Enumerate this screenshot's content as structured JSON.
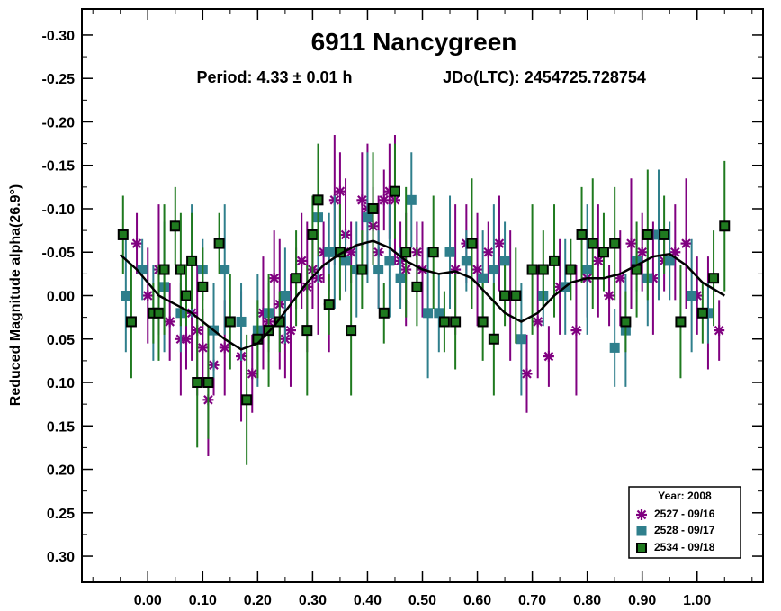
{
  "chart_data": {
    "type": "scatter",
    "title": "6911 Nancygreen",
    "subtitle_period": "Period: 4.33 ± 0.01 h",
    "subtitle_epoch": "JDo(LTC): 2454725.728754",
    "ylabel": "Reduced Magnitude alpha(26.9°)",
    "xlabel": "",
    "xlim": [
      -0.12,
      1.12
    ],
    "ylim": [
      0.33,
      -0.33
    ],
    "y_inverted": true,
    "x_ticks": [
      "0.00",
      "0.10",
      "0.20",
      "0.30",
      "0.40",
      "0.50",
      "0.60",
      "0.70",
      "0.80",
      "0.90",
      "1.00"
    ],
    "y_ticks": [
      "-0.30",
      "-0.25",
      "-0.20",
      "-0.15",
      "-0.10",
      "-0.05",
      "0.00",
      "0.05",
      "0.10",
      "0.15",
      "0.20",
      "0.25",
      "0.30"
    ],
    "grid": false,
    "legend_placement": "bottom-right",
    "legend_title": "Year: 2008",
    "series": [
      {
        "name": "2527 - 09/16",
        "marker": "asterisk",
        "color": "#800080",
        "x": [
          -0.02,
          0.0,
          0.02,
          0.04,
          0.06,
          0.07,
          0.08,
          0.09,
          0.1,
          0.11,
          0.12,
          0.14,
          0.17,
          0.19,
          0.21,
          0.22,
          0.23,
          0.24,
          0.25,
          0.26,
          0.27,
          0.28,
          0.29,
          0.3,
          0.31,
          0.32,
          0.33,
          0.34,
          0.35,
          0.36,
          0.37,
          0.39,
          0.4,
          0.41,
          0.42,
          0.43,
          0.44,
          0.45,
          0.46,
          0.47,
          0.49,
          0.5,
          0.56,
          0.58,
          0.6,
          0.62,
          0.64,
          0.66,
          0.69,
          0.71,
          0.73,
          0.75,
          0.78,
          0.8,
          0.82,
          0.84,
          0.86,
          0.88,
          0.9,
          0.92,
          0.94,
          0.96,
          0.98,
          1.0,
          1.02,
          1.04
        ],
        "y": [
          -0.06,
          0.0,
          -0.03,
          0.03,
          0.05,
          0.05,
          0.02,
          0.04,
          0.06,
          0.12,
          0.08,
          0.06,
          0.07,
          0.09,
          0.02,
          0.03,
          -0.02,
          0.01,
          0.05,
          0.04,
          -0.02,
          -0.04,
          -0.01,
          -0.03,
          -0.02,
          -0.05,
          0.01,
          -0.11,
          -0.12,
          -0.07,
          -0.05,
          -0.11,
          -0.1,
          -0.08,
          -0.05,
          -0.11,
          -0.12,
          -0.11,
          -0.04,
          -0.03,
          -0.05,
          -0.03,
          -0.03,
          -0.06,
          -0.03,
          -0.05,
          -0.06,
          0.0,
          0.09,
          0.03,
          0.07,
          -0.01,
          0.04,
          -0.02,
          -0.04,
          0.0,
          -0.02,
          -0.06,
          -0.05,
          -0.02,
          -0.04,
          -0.05,
          -0.06,
          0.0,
          0.02,
          0.04
        ]
      },
      {
        "name": "2528 - 09/17",
        "marker": "square",
        "color": "#2F7F8C",
        "x": [
          -0.04,
          -0.01,
          0.01,
          0.03,
          0.06,
          0.08,
          0.1,
          0.12,
          0.14,
          0.17,
          0.2,
          0.22,
          0.25,
          0.31,
          0.33,
          0.34,
          0.36,
          0.38,
          0.4,
          0.42,
          0.44,
          0.46,
          0.48,
          0.51,
          0.53,
          0.55,
          0.58,
          0.61,
          0.63,
          0.65,
          0.68,
          0.72,
          0.76,
          0.8,
          0.85,
          0.87,
          0.89,
          0.91,
          0.93,
          0.95,
          0.99,
          1.02
        ],
        "y": [
          0.0,
          -0.03,
          0.02,
          -0.01,
          0.02,
          -0.04,
          -0.03,
          0.04,
          -0.03,
          0.03,
          0.04,
          0.02,
          0.0,
          -0.09,
          -0.05,
          -0.05,
          -0.04,
          -0.03,
          -0.09,
          -0.03,
          -0.04,
          -0.02,
          -0.11,
          0.02,
          0.02,
          -0.05,
          -0.04,
          -0.02,
          -0.03,
          -0.04,
          0.05,
          0.0,
          -0.01,
          -0.03,
          0.06,
          0.04,
          -0.04,
          -0.02,
          -0.07,
          -0.04,
          0.0,
          0.02
        ]
      },
      {
        "name": "2534 - 09/18",
        "marker": "filled-square",
        "color": "#1F7A1F",
        "x": [
          -0.045,
          -0.03,
          0.01,
          0.02,
          0.03,
          0.05,
          0.06,
          0.07,
          0.08,
          0.09,
          0.1,
          0.11,
          0.13,
          0.15,
          0.18,
          0.2,
          0.22,
          0.24,
          0.27,
          0.29,
          0.3,
          0.31,
          0.33,
          0.35,
          0.37,
          0.39,
          0.41,
          0.43,
          0.45,
          0.47,
          0.49,
          0.52,
          0.54,
          0.56,
          0.59,
          0.61,
          0.63,
          0.65,
          0.67,
          0.7,
          0.72,
          0.74,
          0.77,
          0.79,
          0.81,
          0.83,
          0.85,
          0.87,
          0.89,
          0.91,
          0.94,
          0.97,
          1.01,
          1.03,
          1.05
        ],
        "y": [
          -0.07,
          0.03,
          0.02,
          0.02,
          -0.03,
          -0.08,
          -0.03,
          0.0,
          -0.04,
          0.1,
          -0.01,
          0.1,
          -0.06,
          0.03,
          0.12,
          0.05,
          0.04,
          0.03,
          -0.02,
          0.04,
          -0.07,
          -0.11,
          0.01,
          -0.05,
          0.04,
          -0.03,
          -0.1,
          0.02,
          -0.12,
          -0.05,
          -0.01,
          -0.05,
          0.03,
          0.03,
          -0.06,
          0.03,
          0.05,
          0.0,
          0.0,
          -0.03,
          -0.03,
          -0.04,
          -0.03,
          -0.07,
          -0.06,
          -0.05,
          -0.06,
          0.03,
          -0.03,
          -0.07,
          -0.07,
          0.03,
          0.02,
          -0.02,
          -0.08
        ]
      }
    ],
    "fit_curve": {
      "x": [
        -0.05,
        -0.02,
        0.0,
        0.02,
        0.05,
        0.08,
        0.11,
        0.14,
        0.17,
        0.2,
        0.23,
        0.26,
        0.29,
        0.32,
        0.35,
        0.38,
        0.41,
        0.44,
        0.47,
        0.5,
        0.53,
        0.56,
        0.59,
        0.62,
        0.65,
        0.68,
        0.71,
        0.74,
        0.77,
        0.8,
        0.83,
        0.86,
        0.89,
        0.92,
        0.95,
        0.98,
        1.01,
        1.05
      ],
      "y": [
        -0.047,
        -0.03,
        -0.015,
        0.0,
        0.01,
        0.02,
        0.035,
        0.05,
        0.062,
        0.055,
        0.035,
        0.01,
        -0.015,
        -0.035,
        -0.048,
        -0.058,
        -0.063,
        -0.055,
        -0.04,
        -0.03,
        -0.025,
        -0.028,
        -0.02,
        0.0,
        0.02,
        0.03,
        0.02,
        0.0,
        -0.015,
        -0.02,
        -0.02,
        -0.025,
        -0.035,
        -0.045,
        -0.048,
        -0.035,
        -0.015,
        0.0
      ]
    }
  }
}
